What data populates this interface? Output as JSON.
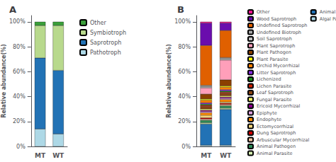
{
  "chart_data": [
    {
      "type": "bar",
      "title": "A",
      "stacked": true,
      "grid": false,
      "legend": "right",
      "categories": [
        "MT",
        "WT"
      ],
      "ylabel": "Relative abundance(%)",
      "ylim": [
        0,
        105
      ],
      "yticks": [
        {
          "value": 0,
          "label": "0%"
        },
        {
          "value": 20,
          "label": "20%"
        },
        {
          "value": 40,
          "label": "40%"
        },
        {
          "value": 60,
          "label": "60%"
        },
        {
          "value": 80,
          "label": "80%"
        },
        {
          "value": 100,
          "label": "100%"
        }
      ],
      "series": [
        {
          "name": "Pathotroph",
          "color": "#add8e6",
          "values": [
            14,
            10
          ]
        },
        {
          "name": "Saprotroph",
          "color": "#2272b5",
          "values": [
            57,
            51
          ]
        },
        {
          "name": "Symbiotroph",
          "color": "#b8d98d",
          "values": [
            26,
            36
          ]
        },
        {
          "name": "Other",
          "color": "#3a9e3a",
          "values": [
            3,
            3
          ]
        }
      ]
    },
    {
      "type": "bar",
      "title": "B",
      "stacked": true,
      "grid": false,
      "legend": "right",
      "categories": [
        "MT",
        "WT"
      ],
      "ylabel": "Relative abundance(%)",
      "ylim": [
        0,
        105
      ],
      "yticks": [
        {
          "value": 0,
          "label": "0%"
        },
        {
          "value": 20,
          "label": "20%"
        },
        {
          "value": 40,
          "label": "40%"
        },
        {
          "value": 60,
          "label": "60%"
        },
        {
          "value": 80,
          "label": "80%"
        },
        {
          "value": 100,
          "label": "100%"
        }
      ],
      "series": [
        {
          "name": "Algal Parasite",
          "color": "#add8e6",
          "values": [
            1,
            0.990099
          ]
        },
        {
          "name": "Animal Endosymbiont",
          "color": "#2272b5",
          "values": [
            17,
            28.712871
          ]
        },
        {
          "name": "Animal Parasite",
          "color": "#d4edaf",
          "values": [
            1,
            0.990099
          ]
        },
        {
          "name": "Animal Pathogen",
          "color": "#2e8b57",
          "values": [
            2,
            1.980198
          ]
        },
        {
          "name": "Arbuscular Mycorrhizal",
          "color": "#f4c6a0",
          "values": [
            1,
            0.990099
          ]
        },
        {
          "name": "Dung Saprotroph",
          "color": "#cc0000",
          "values": [
            1,
            0.990099
          ]
        },
        {
          "name": "Ectomycorrhizal",
          "color": "#fad77c",
          "values": [
            2,
            0.990099
          ]
        },
        {
          "name": "Endophyte",
          "color": "#ff8c00",
          "values": [
            2,
            1.980198
          ]
        },
        {
          "name": "Epiphyte",
          "color": "#dda0dd",
          "values": [
            1,
            0.990099
          ]
        },
        {
          "name": "Ericoid Mycorrhizal",
          "color": "#8b008b",
          "values": [
            1,
            0.990099
          ]
        },
        {
          "name": "Fungal Parasite",
          "color": "#ffff66",
          "values": [
            1,
            0.990099
          ]
        },
        {
          "name": "Leaf Saprotroph",
          "color": "#8b4513",
          "values": [
            2,
            1.980198
          ]
        },
        {
          "name": "Lichen Parasite",
          "color": "#cc2200",
          "values": [
            1,
            0.990099
          ]
        },
        {
          "name": "Lichenized",
          "color": "#1e8c1e",
          "values": [
            1,
            0.990099
          ]
        },
        {
          "name": "Litter Saprotroph",
          "color": "#8a2be2",
          "values": [
            1,
            0.990099
          ]
        },
        {
          "name": "Orchid Mycorrhizal",
          "color": "#ff8000",
          "values": [
            2,
            1.980198
          ]
        },
        {
          "name": "Plant Parasite",
          "color": "#ffff00",
          "values": [
            1,
            0.990099
          ]
        },
        {
          "name": "Plant Pathogen",
          "color": "#8b4000",
          "values": [
            4,
            4.950495
          ]
        },
        {
          "name": "Plant Saprotroph",
          "color": "#ff9fba",
          "values": [
            5,
            15.841584
          ]
        },
        {
          "name": "Soil Saprotroph",
          "color": "#c0c0c0",
          "values": [
            1,
            0.990099
          ]
        },
        {
          "name": "Undefined Biotroph",
          "color": "#a9a9a9",
          "values": [
            1,
            0.990099
          ]
        },
        {
          "name": "Undefined Saprotroph",
          "color": "#e06000",
          "values": [
            32,
            21.782178
          ]
        },
        {
          "name": "Wood Saprotroph",
          "color": "#6a0dad",
          "values": [
            18,
            5.940594
          ]
        },
        {
          "name": "Other",
          "color": "#ff1493",
          "values": [
            1,
            0.990099
          ]
        }
      ]
    }
  ]
}
